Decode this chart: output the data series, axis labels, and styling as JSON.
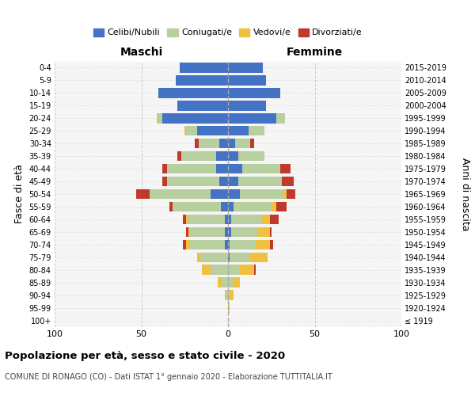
{
  "age_groups": [
    "100+",
    "95-99",
    "90-94",
    "85-89",
    "80-84",
    "75-79",
    "70-74",
    "65-69",
    "60-64",
    "55-59",
    "50-54",
    "45-49",
    "40-44",
    "35-39",
    "30-34",
    "25-29",
    "20-24",
    "15-19",
    "10-14",
    "5-9",
    "0-4"
  ],
  "birth_years": [
    "≤ 1919",
    "1920-1924",
    "1925-1929",
    "1930-1934",
    "1935-1939",
    "1940-1944",
    "1945-1949",
    "1950-1954",
    "1955-1959",
    "1960-1964",
    "1965-1969",
    "1970-1974",
    "1975-1979",
    "1980-1984",
    "1985-1989",
    "1990-1994",
    "1995-1999",
    "2000-2004",
    "2005-2009",
    "2010-2014",
    "2015-2019"
  ],
  "male": {
    "celibi": [
      0,
      0,
      0,
      0,
      0,
      0,
      2,
      2,
      2,
      4,
      10,
      5,
      7,
      7,
      5,
      18,
      38,
      29,
      40,
      30,
      28
    ],
    "coniugati": [
      0,
      0,
      1,
      4,
      10,
      16,
      20,
      20,
      21,
      28,
      35,
      30,
      28,
      20,
      12,
      6,
      2,
      0,
      0,
      0,
      0
    ],
    "vedovi": [
      0,
      0,
      1,
      2,
      5,
      2,
      2,
      1,
      1,
      0,
      0,
      0,
      0,
      0,
      0,
      1,
      1,
      0,
      0,
      0,
      0
    ],
    "divorziati": [
      0,
      0,
      0,
      0,
      0,
      0,
      2,
      1,
      2,
      2,
      8,
      3,
      3,
      2,
      2,
      0,
      0,
      0,
      0,
      0,
      0
    ]
  },
  "female": {
    "nubili": [
      0,
      0,
      0,
      0,
      0,
      1,
      1,
      2,
      2,
      3,
      7,
      6,
      8,
      6,
      4,
      12,
      28,
      22,
      30,
      22,
      20
    ],
    "coniugate": [
      0,
      0,
      1,
      3,
      7,
      12,
      15,
      15,
      17,
      22,
      25,
      25,
      22,
      15,
      9,
      9,
      5,
      0,
      0,
      0,
      0
    ],
    "vedove": [
      0,
      1,
      2,
      4,
      8,
      10,
      8,
      7,
      5,
      3,
      2,
      0,
      0,
      0,
      0,
      0,
      0,
      0,
      0,
      0,
      0
    ],
    "divorziate": [
      0,
      0,
      0,
      0,
      1,
      0,
      2,
      1,
      5,
      6,
      5,
      7,
      6,
      0,
      2,
      0,
      0,
      0,
      0,
      0,
      0
    ]
  },
  "colors": {
    "celibi_nubili": "#4472c4",
    "coniugati": "#b8cfa0",
    "vedovi": "#f0c040",
    "divorziati": "#c0392b"
  },
  "xlim": 100,
  "title": "Popolazione per età, sesso e stato civile - 2020",
  "subtitle": "COMUNE DI RONAGO (CO) - Dati ISTAT 1° gennaio 2020 - Elaborazione TUTTITALIA.IT",
  "ylabel_left": "Fasce di età",
  "ylabel_right": "Anni di nascita",
  "xlabel_left": "Maschi",
  "xlabel_right": "Femmine",
  "bg_color": "#f5f5f5",
  "grid_color": "#cccccc"
}
